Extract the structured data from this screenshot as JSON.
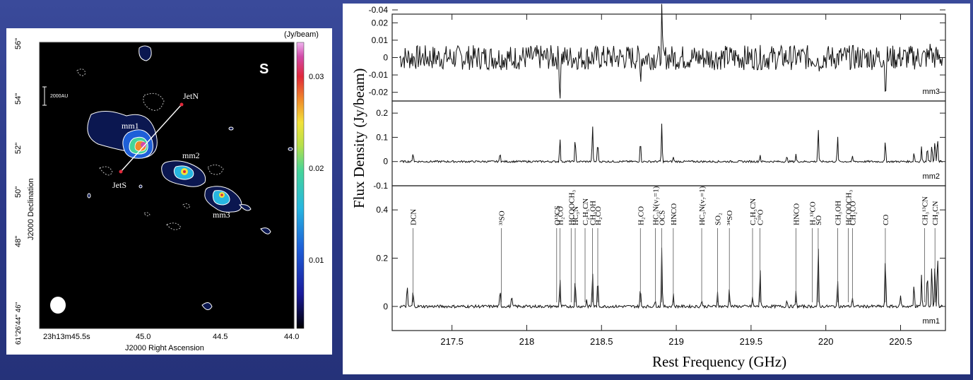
{
  "colors": {
    "background": "#2b3a8c",
    "map_bg": "#000000",
    "contour": "#ffffff",
    "spectrum_line": "#111111",
    "colorbar": [
      "#000000",
      "#1a1a9a",
      "#1e5fd8",
      "#27b6e0",
      "#45d49a",
      "#b7e04a",
      "#f2e23a",
      "#f08a2a",
      "#e0283a",
      "#d24aa8",
      "#f0b4f0"
    ]
  },
  "left_chart": {
    "panel_letter": "S",
    "unit_label": "(Jy/beam)",
    "ylabel": "J2000 Declination",
    "xlabel": "J2000 Right Ascension",
    "scale_label": "2000AU",
    "yticks": [
      "56\"",
      "54\"",
      "52\"",
      "50\"",
      "48\"",
      "61°26'44\" 46\""
    ],
    "xticks": [
      "23h13m45.5s",
      "45.0",
      "44.5",
      "44.0"
    ],
    "colorbar_ticks": [
      "0.03",
      "0.02",
      "0.01"
    ],
    "sources": [
      "mm1",
      "mm2",
      "mm3"
    ],
    "jets": [
      "JetN",
      "JetS"
    ]
  },
  "chart_data": {
    "type": "line",
    "xlabel": "Rest Frequency (GHz)",
    "ylabel": "Flux Density (Jy/beam)",
    "xlim": [
      217.1,
      220.8
    ],
    "xticks": [
      "217.5",
      "218",
      "218.5",
      "219",
      "219.5",
      "220",
      "220.5"
    ],
    "panels": [
      {
        "name": "mm3",
        "ylim": [
          -0.025,
          0.025
        ],
        "yticks": [
          "-0.04",
          "0.02",
          "0.01",
          "0",
          "-0.01",
          "-0.02"
        ],
        "peaks": [
          [
            218.222,
            -0.025
          ],
          [
            218.76,
            -0.012
          ],
          [
            218.903,
            0.026
          ],
          [
            220.398,
            -0.025
          ],
          [
            219.96,
            -0.008
          ],
          [
            217.9,
            -0.008
          ],
          [
            220.7,
            0.012
          ]
        ]
      },
      {
        "name": "mm2",
        "ylim": [
          -0.1,
          0.25
        ],
        "yticks": [
          "0.2",
          "0.1",
          "0",
          "-0.1"
        ],
        "peaks": [
          [
            217.24,
            0.04
          ],
          [
            217.822,
            0.04
          ],
          [
            218.222,
            0.1
          ],
          [
            218.324,
            0.1
          ],
          [
            218.44,
            0.155
          ],
          [
            218.475,
            0.09
          ],
          [
            218.76,
            0.095
          ],
          [
            218.903,
            0.155
          ],
          [
            218.98,
            0.02
          ],
          [
            219.56,
            0.03
          ],
          [
            219.74,
            0.02
          ],
          [
            219.8,
            0.03
          ],
          [
            219.949,
            0.145
          ],
          [
            220.079,
            0.105
          ],
          [
            220.178,
            0.02
          ],
          [
            220.398,
            0.09
          ],
          [
            220.59,
            0.04
          ],
          [
            220.64,
            0.06
          ],
          [
            220.679,
            0.07
          ],
          [
            220.709,
            0.075
          ],
          [
            220.73,
            0.095
          ],
          [
            220.747,
            0.105
          ]
        ]
      },
      {
        "name": "mm1",
        "ylim": [
          -0.1,
          0.5
        ],
        "yticks": [
          "0.4",
          "0.2",
          "0"
        ],
        "peaks": [
          [
            217.2,
            0.09
          ],
          [
            217.24,
            0.07
          ],
          [
            217.822,
            0.07
          ],
          [
            217.9,
            0.05
          ],
          [
            218.222,
            0.12
          ],
          [
            218.324,
            0.12
          ],
          [
            218.4,
            0.03
          ],
          [
            218.44,
            0.15
          ],
          [
            218.475,
            0.12
          ],
          [
            218.76,
            0.08
          ],
          [
            218.86,
            0.03
          ],
          [
            218.903,
            0.25
          ],
          [
            218.98,
            0.05
          ],
          [
            219.17,
            0.03
          ],
          [
            219.276,
            0.06
          ],
          [
            219.355,
            0.08
          ],
          [
            219.51,
            0.04
          ],
          [
            219.56,
            0.17
          ],
          [
            219.74,
            0.03
          ],
          [
            219.8,
            0.06
          ],
          [
            219.949,
            0.26
          ],
          [
            220.079,
            0.11
          ],
          [
            220.178,
            0.04
          ],
          [
            220.398,
            0.22
          ],
          [
            220.5,
            0.05
          ],
          [
            220.59,
            0.1
          ],
          [
            220.64,
            0.13
          ],
          [
            220.679,
            0.16
          ],
          [
            220.709,
            0.18
          ],
          [
            220.73,
            0.2
          ],
          [
            220.747,
            0.24
          ]
        ]
      }
    ],
    "line_ids": [
      {
        "label": "DCN",
        "x": 217.24
      },
      {
        "label": "³³SO",
        "x": 217.83
      },
      {
        "label": "O¹³CS",
        "x": 218.2
      },
      {
        "label": "H₂CO",
        "x": 218.222
      },
      {
        "label": "HCOOCH₃",
        "x": 218.297
      },
      {
        "label": "HC₃N",
        "x": 218.324
      },
      {
        "label": "C₂H₅CN",
        "x": 218.39
      },
      {
        "label": "CH₃OH",
        "x": 218.44
      },
      {
        "label": "H₂CO",
        "x": 218.475
      },
      {
        "label": "H₂CO",
        "x": 218.76
      },
      {
        "label": "HC₃N(v₇=1)",
        "x": 218.86
      },
      {
        "label": "OCS",
        "x": 218.903
      },
      {
        "label": "HNCO",
        "x": 218.98
      },
      {
        "label": "HC₃N(v₇=1)",
        "x": 219.17
      },
      {
        "label": "SO₂",
        "x": 219.276
      },
      {
        "label": "³⁴SO",
        "x": 219.355
      },
      {
        "label": "C₂H₅CN",
        "x": 219.51
      },
      {
        "label": "C¹⁸O",
        "x": 219.56
      },
      {
        "label": "HNCO",
        "x": 219.8
      },
      {
        "label": "H₂¹³CO",
        "x": 219.91
      },
      {
        "label": "SO",
        "x": 219.949
      },
      {
        "label": "CH₃OH",
        "x": 220.079
      },
      {
        "label": "HCOOCH₃",
        "x": 220.15
      },
      {
        "label": "CH₂CO",
        "x": 220.178
      },
      {
        "label": "CO",
        "x": 220.398
      },
      {
        "label": "CH₃¹³CN",
        "x": 220.66
      },
      {
        "label": "CH₃CN",
        "x": 220.73
      }
    ]
  }
}
